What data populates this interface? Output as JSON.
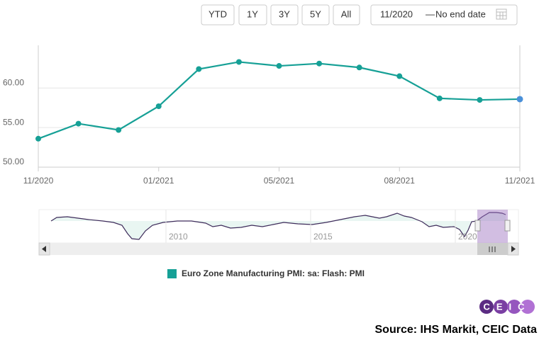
{
  "chart_data": {
    "type": "line",
    "categories": [
      "11/2020",
      null,
      null,
      "01/2021",
      null,
      null,
      "05/2021",
      null,
      null,
      "08/2021",
      null,
      null,
      "11/2021"
    ],
    "series": [
      {
        "name": "Euro Zone Manufacturing PMI: sa: Flash: PMI",
        "color": "#16a096",
        "values": [
          53.6,
          55.5,
          54.7,
          57.7,
          62.4,
          63.3,
          62.8,
          63.1,
          62.6,
          61.5,
          58.7,
          58.5,
          58.6
        ]
      }
    ],
    "ylim": [
      50,
      65.4
    ],
    "yticks": [
      {
        "value": 50,
        "label": "50.00"
      },
      {
        "value": 55,
        "label": "55.00"
      },
      {
        "value": 60,
        "label": "60.00"
      }
    ],
    "grid": true
  },
  "range_buttons": [
    "YTD",
    "1Y",
    "3Y",
    "5Y",
    "All"
  ],
  "date_range": {
    "from": "11/2020",
    "separator": "—",
    "to": "No end date"
  },
  "navigator": {
    "labels": [
      "2010",
      "2015",
      "2020"
    ]
  },
  "logo": "CEIC",
  "source": "Source: IHS Markit, CEIC Data"
}
